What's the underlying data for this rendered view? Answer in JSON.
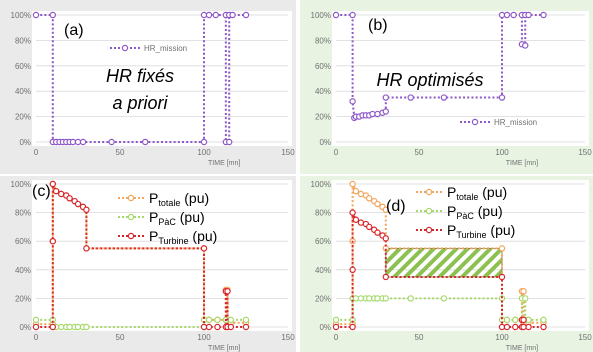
{
  "colors": {
    "purple": "#8e57c9",
    "orange": "#f4a55d",
    "green": "#a6d96a",
    "red": "#d7262b",
    "hatch": "#8cc152"
  },
  "chart_data": [
    {
      "id": "a",
      "type": "line",
      "panel_label": "(a)",
      "annotation_lines": [
        "HR fixés",
        "a priori"
      ],
      "xlabel": "TIME [mn]",
      "xticks": [
        "0",
        "50",
        "100",
        "150"
      ],
      "yticks": [
        "0%",
        "20%",
        "40%",
        "60%",
        "80%",
        "100%"
      ],
      "xlim": [
        0,
        150
      ],
      "ylim": [
        0,
        100
      ],
      "legend": {
        "position": "upper-right",
        "entries": [
          "HR_mission"
        ]
      },
      "series": [
        {
          "name": "HR_mission",
          "color": "purple",
          "x": [
            0,
            10,
            10,
            12,
            14,
            16,
            18,
            20,
            22,
            25,
            28,
            45,
            65,
            100,
            100,
            103,
            107,
            113,
            113,
            115,
            115,
            117,
            125
          ],
          "y": [
            100,
            100,
            0,
            0,
            0,
            0,
            0,
            0,
            0,
            0,
            0,
            0,
            0,
            0,
            100,
            100,
            100,
            100,
            0,
            0,
            100,
            100,
            100
          ]
        }
      ]
    },
    {
      "id": "b",
      "type": "line",
      "panel_label": "(b)",
      "annotation_lines": [
        "HR optimisés"
      ],
      "xlabel": "TIME [mn]",
      "xticks": [
        "0",
        "50",
        "100",
        "150"
      ],
      "yticks": [
        "0%",
        "20%",
        "40%",
        "60%",
        "80%",
        "100%"
      ],
      "xlim": [
        0,
        150
      ],
      "ylim": [
        0,
        100
      ],
      "legend": {
        "position": "lower-right",
        "entries": [
          "HR_mission"
        ]
      },
      "series": [
        {
          "name": "HR_mission",
          "color": "purple",
          "x": [
            0,
            10,
            10,
            11,
            12,
            14,
            16,
            18,
            20,
            22,
            25,
            28,
            30,
            30,
            45,
            65,
            100,
            100,
            103,
            107,
            112,
            112,
            114,
            114,
            116,
            125
          ],
          "y": [
            100,
            100,
            32,
            19,
            20,
            20,
            21,
            21,
            21,
            22,
            22,
            23,
            24,
            35,
            35,
            35,
            35,
            100,
            100,
            100,
            100,
            77,
            76,
            100,
            100,
            100
          ]
        }
      ]
    },
    {
      "id": "c",
      "type": "line",
      "panel_label": "(c)",
      "xlabel": "TIME [mn]",
      "xticks": [
        "0",
        "50",
        "100",
        "150"
      ],
      "yticks": [
        "0%",
        "20%",
        "40%",
        "60%",
        "80%",
        "100%"
      ],
      "xlim": [
        0,
        150
      ],
      "ylim": [
        0,
        100
      ],
      "legend": {
        "position": "upper-center",
        "entries": [
          {
            "main": "P",
            "sub": "totale",
            "unit": "(pu)"
          },
          {
            "main": "P",
            "sub": "PàC",
            "unit": "(pu)"
          },
          {
            "main": "P",
            "sub": "Turbine",
            "unit": "(pu)"
          }
        ]
      },
      "series": [
        {
          "name": "P_totale",
          "color": "orange",
          "x": [
            0,
            10,
            10,
            10,
            12,
            15,
            18,
            20,
            23,
            25,
            28,
            30,
            30,
            100,
            100,
            103,
            108,
            113,
            113,
            114,
            114,
            116,
            125
          ],
          "y": [
            2,
            2,
            60,
            100,
            95,
            93,
            92,
            90,
            88,
            86,
            84,
            82,
            55,
            55,
            5,
            5,
            5,
            5,
            26,
            26,
            3,
            3,
            3
          ]
        },
        {
          "name": "P_PàC",
          "color": "green",
          "x": [
            0,
            10,
            10,
            12,
            15,
            18,
            20,
            23,
            25,
            28,
            30,
            100,
            100,
            103,
            108,
            113,
            116,
            125
          ],
          "y": [
            5,
            5,
            0,
            0,
            0,
            0,
            0,
            0,
            0,
            0,
            0,
            0,
            5,
            5,
            5,
            5,
            5,
            5
          ]
        },
        {
          "name": "P_Turbine",
          "color": "red",
          "x": [
            0,
            10,
            10,
            10,
            12,
            15,
            18,
            20,
            23,
            25,
            28,
            30,
            30,
            100,
            100,
            103,
            108,
            113,
            113,
            114,
            114,
            116,
            125
          ],
          "y": [
            0,
            0,
            60,
            100,
            95,
            93,
            92,
            90,
            88,
            86,
            84,
            82,
            55,
            55,
            0,
            0,
            0,
            0,
            25,
            25,
            0,
            0,
            0
          ]
        }
      ]
    },
    {
      "id": "d",
      "type": "line",
      "panel_label": "(d)",
      "xlabel": "TIME [mn]",
      "xticks": [
        "0",
        "50",
        "100",
        "150"
      ],
      "yticks": [
        "0%",
        "20%",
        "40%",
        "60%",
        "80%",
        "100%"
      ],
      "xlim": [
        0,
        150
      ],
      "ylim": [
        0,
        100
      ],
      "legend": {
        "position": "upper-center",
        "entries": [
          {
            "main": "P",
            "sub": "totale",
            "unit": "(pu)"
          },
          {
            "main": "P",
            "sub": "PàC",
            "unit": "(pu)"
          },
          {
            "main": "P",
            "sub": "Turbine",
            "unit": "(pu)"
          }
        ]
      },
      "hatched_band": {
        "x": [
          30,
          100
        ],
        "y": [
          35,
          55
        ]
      },
      "series": [
        {
          "name": "P_totale",
          "color": "orange",
          "x": [
            0,
            10,
            10,
            10,
            12,
            15,
            18,
            20,
            23,
            25,
            28,
            30,
            30,
            100,
            100,
            103,
            108,
            112,
            112,
            113,
            113,
            116,
            125
          ],
          "y": [
            2,
            2,
            60,
            100,
            95,
            93,
            92,
            90,
            88,
            86,
            84,
            82,
            55,
            55,
            5,
            5,
            5,
            5,
            25,
            25,
            3,
            3,
            3
          ]
        },
        {
          "name": "P_PàC",
          "color": "green",
          "x": [
            0,
            10,
            10,
            12,
            15,
            18,
            20,
            23,
            25,
            28,
            30,
            45,
            65,
            100,
            100,
            103,
            108,
            112,
            112,
            114,
            114,
            116,
            125
          ],
          "y": [
            5,
            5,
            20,
            20,
            20,
            20,
            20,
            20,
            20,
            20,
            20,
            20,
            20,
            20,
            5,
            5,
            5,
            5,
            20,
            20,
            5,
            5,
            5
          ]
        },
        {
          "name": "P_Turbine",
          "color": "red",
          "x": [
            0,
            10,
            10,
            10,
            12,
            15,
            18,
            20,
            23,
            25,
            28,
            30,
            30,
            100,
            100,
            103,
            108,
            112,
            112,
            113,
            113,
            116,
            125
          ],
          "y": [
            0,
            0,
            40,
            80,
            75,
            73,
            72,
            70,
            68,
            66,
            64,
            62,
            35,
            35,
            0,
            0,
            0,
            0,
            5,
            5,
            0,
            0,
            0
          ]
        }
      ]
    }
  ]
}
